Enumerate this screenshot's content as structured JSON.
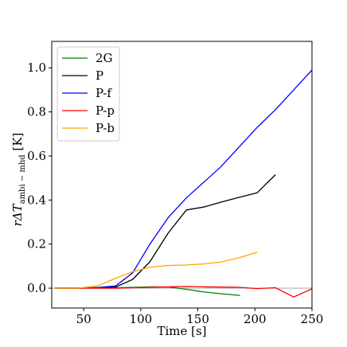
{
  "chart_data": {
    "type": "line",
    "title": "",
    "xlabel": "Time [s]",
    "ylabel": {
      "prefix": "rΔT",
      "subscript": "ambi − mhd",
      "suffix": " [K]"
    },
    "xlim": [
      22,
      250
    ],
    "ylim": [
      -0.09,
      1.12
    ],
    "xticks": [
      50,
      100,
      150,
      200,
      250
    ],
    "yticks": [
      0.0,
      0.2,
      0.4,
      0.6,
      0.8,
      1.0
    ],
    "xtick_labels": [
      "50",
      "100",
      "150",
      "200",
      "250"
    ],
    "ytick_labels": [
      "0.0",
      "0.2",
      "0.4",
      "0.6",
      "0.8",
      "1.0"
    ],
    "grid": false,
    "legend_position": "top-left",
    "reference_line": {
      "y": 0.0,
      "color": "#b0b0b0"
    },
    "series": [
      {
        "name": "2G",
        "color": "#008000",
        "x": [
          25,
          45,
          60,
          80,
          95,
          110,
          125,
          140,
          155,
          170,
          187
        ],
        "y": [
          0.0,
          0.0,
          0.002,
          0.002,
          0.004,
          0.006,
          0.005,
          -0.005,
          -0.017,
          -0.025,
          -0.033
        ]
      },
      {
        "name": "P",
        "color": "#000000",
        "x": [
          25,
          45,
          62,
          78,
          93,
          108,
          124,
          140,
          155,
          170,
          186,
          202,
          218
        ],
        "y": [
          0.0,
          0.0,
          0.002,
          0.005,
          0.04,
          0.12,
          0.25,
          0.355,
          0.368,
          0.39,
          0.412,
          0.433,
          0.515
        ]
      },
      {
        "name": "P-f",
        "color": "#0000ff",
        "x": [
          25,
          45,
          62,
          78,
          93,
          108,
          124,
          140,
          155,
          170,
          186,
          202,
          218,
          234,
          250
        ],
        "y": [
          0.0,
          0.0,
          0.003,
          0.01,
          0.07,
          0.2,
          0.32,
          0.41,
          0.48,
          0.55,
          0.64,
          0.73,
          0.81,
          0.9,
          0.99
        ]
      },
      {
        "name": "P-p",
        "color": "#ff0000",
        "x": [
          25,
          45,
          62,
          78,
          93,
          108,
          124,
          140,
          155,
          170,
          186,
          202,
          218,
          234,
          250
        ],
        "y": [
          0.0,
          0.0,
          0.0,
          0.0,
          0.002,
          0.004,
          0.006,
          0.008,
          0.006,
          0.005,
          0.004,
          -0.002,
          0.002,
          -0.04,
          -0.003
        ]
      },
      {
        "name": "P-b",
        "color": "#ffa500",
        "x": [
          25,
          45,
          62,
          78,
          93,
          108,
          124,
          140,
          155,
          170,
          186,
          202
        ],
        "y": [
          0.0,
          0.0,
          0.01,
          0.045,
          0.075,
          0.095,
          0.103,
          0.105,
          0.11,
          0.118,
          0.138,
          0.163
        ]
      }
    ]
  }
}
